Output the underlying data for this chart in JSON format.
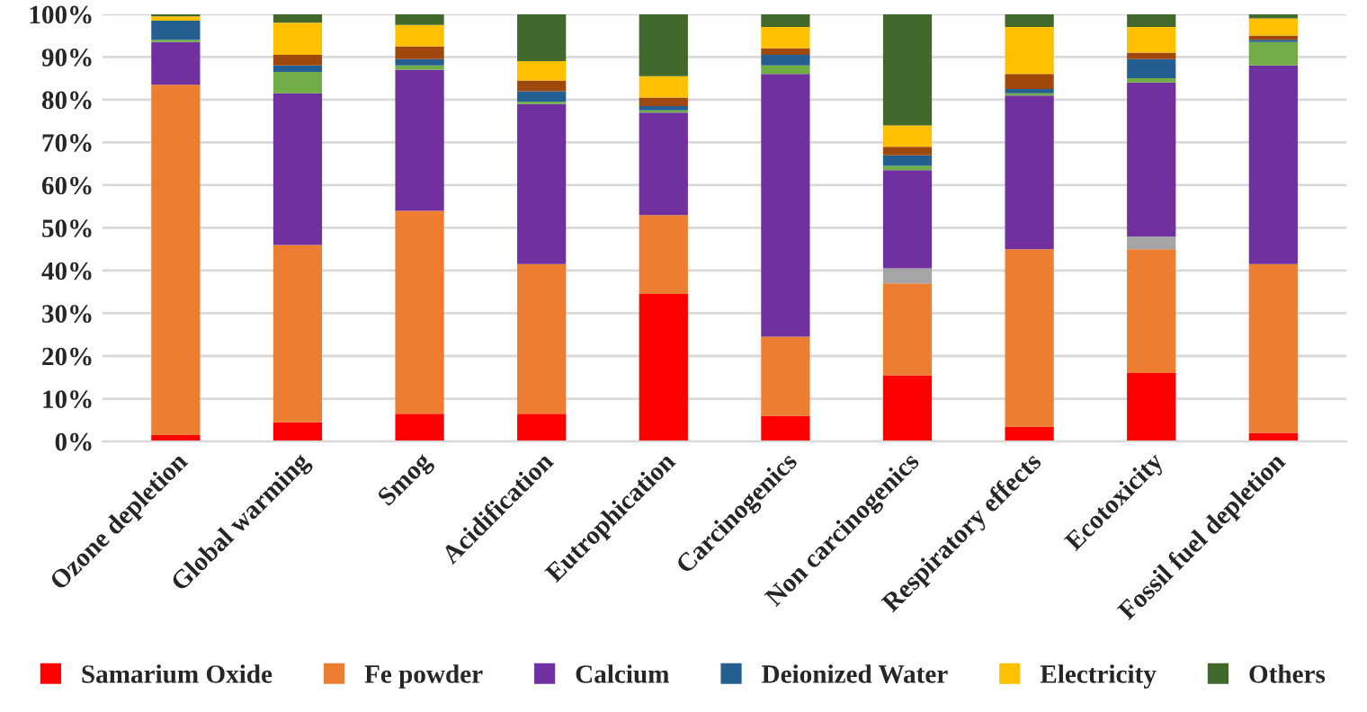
{
  "chart_data": {
    "type": "bar",
    "stacked": true,
    "categories": [
      "Ozone depletion",
      "Global warming",
      "Smog",
      "Acidification",
      "Eutrophication",
      "Carcinogenics",
      "Non carcinogenics",
      "Respiratory effects",
      "Ecotoxicity",
      "Fossil fuel depletion"
    ],
    "series": [
      {
        "name": "Samarium Oxide",
        "color": "#ff0000",
        "values": [
          1.5,
          4.5,
          6.5,
          6.5,
          34.5,
          6,
          15.5,
          3.5,
          16,
          2
        ]
      },
      {
        "name": "Fe powder",
        "color": "#ed7d31",
        "values": [
          82,
          41.5,
          47.5,
          35,
          18.5,
          18.5,
          21.5,
          41.5,
          29,
          39.5
        ]
      },
      {
        "color": "#a5a5a5",
        "values": [
          0,
          0,
          0,
          0,
          0,
          null,
          3.5,
          0,
          3,
          0
        ]
      },
      {
        "name": "Calcium",
        "color": "#7030a0",
        "values": [
          10,
          35.5,
          33,
          37.5,
          24,
          61.5,
          23,
          36,
          36,
          46.5
        ]
      },
      {
        "color": "#70ad47",
        "values": [
          0.5,
          5,
          1,
          0.5,
          0.5,
          2,
          1,
          0.5,
          1,
          5.5
        ]
      },
      {
        "name": "Deionized Water",
        "color": "#255e91",
        "values": [
          4.5,
          1.5,
          1.5,
          2.5,
          1,
          2.5,
          2.5,
          1,
          4.5,
          0.5
        ]
      },
      {
        "color": "#9e480e",
        "values": [
          0,
          2.5,
          3,
          2.5,
          2,
          1.5,
          2,
          3.5,
          1.5,
          1
        ]
      },
      {
        "name": "Electricity",
        "color": "#ffc000",
        "values": [
          1,
          7.5,
          5,
          4.5,
          5,
          5,
          5,
          11,
          6,
          4
        ]
      },
      {
        "name": "Others",
        "color": "#43682b",
        "values": [
          0.5,
          2,
          2.5,
          11,
          14.5,
          3,
          26,
          3,
          3,
          1
        ]
      }
    ],
    "ylim": [
      0,
      100
    ],
    "yticks": [
      {
        "value": 0,
        "label": "0%"
      },
      {
        "value": 10,
        "label": "10%"
      },
      {
        "value": 20,
        "label": "20%"
      },
      {
        "value": 30,
        "label": "30%"
      },
      {
        "value": 40,
        "label": "40%"
      },
      {
        "value": 50,
        "label": "50%"
      },
      {
        "value": 60,
        "label": "60%"
      },
      {
        "value": 70,
        "label": "70%"
      },
      {
        "value": 80,
        "label": "80%"
      },
      {
        "value": 90,
        "label": "90%"
      },
      {
        "value": 100,
        "label": "100%"
      }
    ],
    "grid": "y",
    "legend": "bottom"
  }
}
